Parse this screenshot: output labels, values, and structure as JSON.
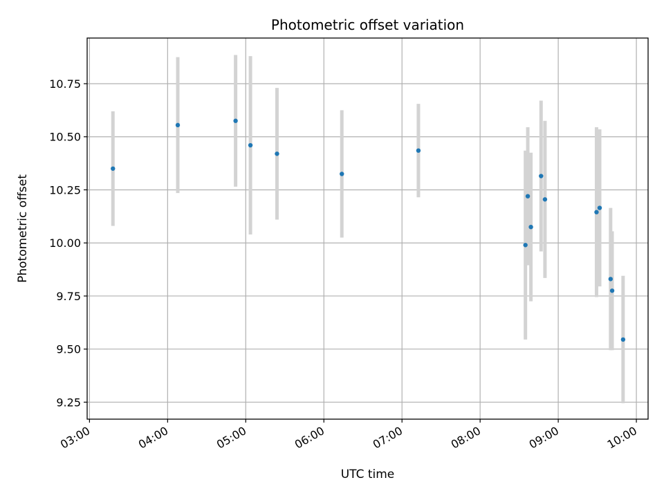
{
  "chart_data": {
    "type": "scatter",
    "title": "Photometric offset variation",
    "xlabel": "UTC time",
    "ylabel": "Photometric offset",
    "x_unit": "hours UTC",
    "xlim": [
      2.97,
      10.15
    ],
    "ylim": [
      9.17,
      10.965
    ],
    "x_ticks": [
      {
        "value": 3,
        "label": "03:00"
      },
      {
        "value": 4,
        "label": "04:00"
      },
      {
        "value": 5,
        "label": "05:00"
      },
      {
        "value": 6,
        "label": "06:00"
      },
      {
        "value": 7,
        "label": "07:00"
      },
      {
        "value": 8,
        "label": "08:00"
      },
      {
        "value": 9,
        "label": "09:00"
      },
      {
        "value": 10,
        "label": "10:00"
      }
    ],
    "y_ticks": [
      {
        "value": 9.25,
        "label": "9.25"
      },
      {
        "value": 9.5,
        "label": "9.50"
      },
      {
        "value": 9.75,
        "label": "9.75"
      },
      {
        "value": 10.0,
        "label": "10.00"
      },
      {
        "value": 10.25,
        "label": "10.25"
      },
      {
        "value": 10.5,
        "label": "10.50"
      },
      {
        "value": 10.75,
        "label": "10.75"
      }
    ],
    "grid": true,
    "x_tick_rotation": 30,
    "marker_color": "#1f77b4",
    "errorbar_color": "#d3d3d3",
    "points": [
      {
        "x": 3.3,
        "y": 10.35,
        "err": 0.27
      },
      {
        "x": 4.13,
        "y": 10.555,
        "err": 0.32
      },
      {
        "x": 4.87,
        "y": 10.575,
        "err": 0.31
      },
      {
        "x": 5.06,
        "y": 10.46,
        "err": 0.42
      },
      {
        "x": 5.4,
        "y": 10.42,
        "err": 0.31
      },
      {
        "x": 6.23,
        "y": 10.325,
        "err": 0.3
      },
      {
        "x": 7.21,
        "y": 10.435,
        "err": 0.22
      },
      {
        "x": 8.58,
        "y": 9.99,
        "err": 0.445
      },
      {
        "x": 8.61,
        "y": 10.22,
        "err": 0.325
      },
      {
        "x": 8.65,
        "y": 10.075,
        "err": 0.35
      },
      {
        "x": 8.78,
        "y": 10.315,
        "err": 0.355
      },
      {
        "x": 8.83,
        "y": 10.205,
        "err": 0.37
      },
      {
        "x": 9.49,
        "y": 10.145,
        "err": 0.4
      },
      {
        "x": 9.53,
        "y": 10.165,
        "err": 0.37
      },
      {
        "x": 9.67,
        "y": 9.83,
        "err": 0.335
      },
      {
        "x": 9.69,
        "y": 9.775,
        "err": 0.28
      },
      {
        "x": 9.83,
        "y": 9.545,
        "err": 0.3
      }
    ]
  }
}
